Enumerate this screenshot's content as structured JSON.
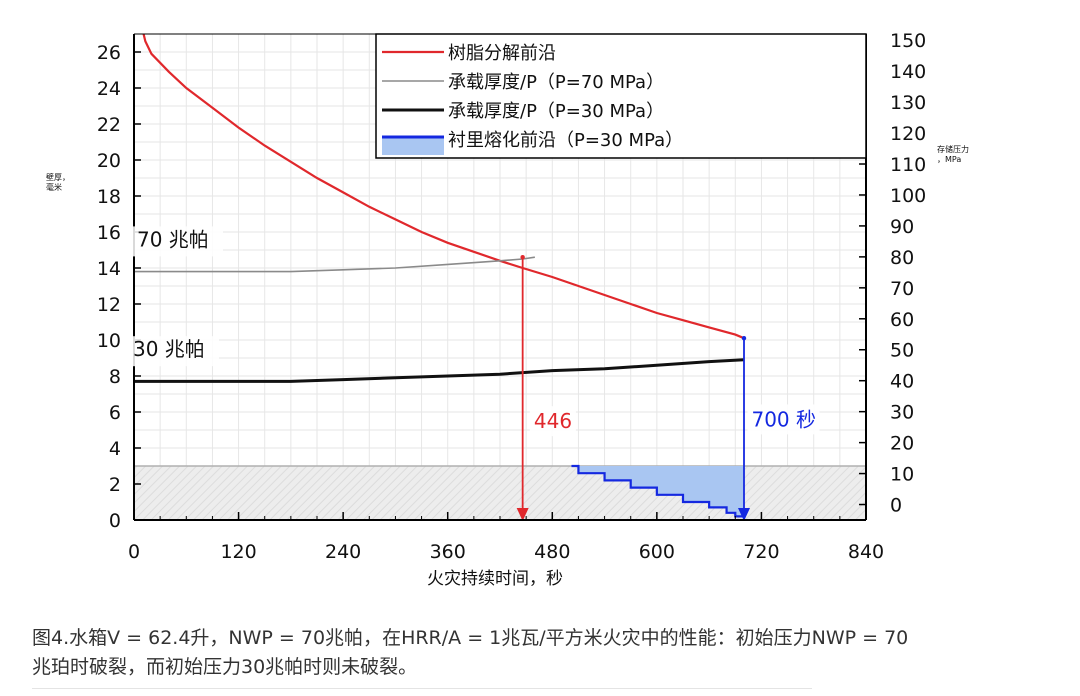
{
  "chart_data": {
    "type": "line",
    "x": [
      0,
      30,
      60,
      90,
      120,
      150,
      180,
      210,
      240,
      270,
      300,
      330,
      360,
      390,
      420,
      446,
      480,
      510,
      540,
      570,
      600,
      630,
      660,
      690,
      700
    ],
    "xlabel": "火灾持续时间，秒",
    "ylabel": "壁厚，毫米",
    "y2label": "存储压力，MPa",
    "xlim": [
      0,
      840
    ],
    "ylim": [
      0,
      27
    ],
    "y2lim": [
      -5,
      152
    ],
    "x_ticks": [
      0,
      120,
      240,
      360,
      480,
      600,
      720,
      840
    ],
    "y_ticks": [
      0,
      2,
      4,
      6,
      8,
      10,
      12,
      14,
      16,
      18,
      20,
      22,
      24,
      26
    ],
    "y2_ticks": [
      0,
      10,
      20,
      30,
      40,
      50,
      60,
      70,
      80,
      90,
      100,
      110,
      120,
      130,
      140,
      150
    ],
    "grid": true,
    "legend_position": "top-right",
    "series": [
      {
        "name": "树脂分解前沿",
        "color": "#e0282c",
        "axis": "left",
        "x": [
          11,
          13,
          20,
          40,
          60,
          90,
          120,
          150,
          180,
          210,
          240,
          270,
          300,
          330,
          360,
          390,
          420,
          446,
          480,
          510,
          540,
          570,
          600,
          630,
          660,
          690,
          700
        ],
        "y": [
          27.0,
          26.6,
          25.9,
          24.9,
          24.0,
          22.9,
          21.8,
          20.8,
          19.9,
          19.0,
          18.2,
          17.4,
          16.7,
          16.0,
          15.4,
          14.9,
          14.4,
          14.0,
          13.5,
          13.0,
          12.5,
          12.0,
          11.5,
          11.1,
          10.7,
          10.3,
          10.1
        ]
      },
      {
        "name": "承载厚度/P（P=70 MPa）",
        "color": "#8a8a8a",
        "axis": "left",
        "x": [
          0,
          60,
          120,
          180,
          240,
          300,
          360,
          420,
          446,
          460
        ],
        "y": [
          13.8,
          13.8,
          13.8,
          13.8,
          13.9,
          14.0,
          14.2,
          14.4,
          14.5,
          14.6
        ]
      },
      {
        "name": "承载厚度/P（P=30 MPa）",
        "color": "#111111",
        "axis": "left",
        "x": [
          0,
          60,
          120,
          180,
          240,
          300,
          360,
          420,
          480,
          540,
          600,
          660,
          700
        ],
        "y": [
          7.7,
          7.7,
          7.7,
          7.7,
          7.8,
          7.9,
          8.0,
          8.1,
          8.3,
          8.4,
          8.6,
          8.8,
          8.9
        ]
      },
      {
        "name": "衬里熔化前沿（P=30 MPa）",
        "color": "#1428e0",
        "fill": "#a9c6f2",
        "axis": "left",
        "x": [
          502,
          510,
          510,
          540,
          540,
          570,
          570,
          600,
          600,
          630,
          630,
          660,
          660,
          680,
          680,
          690,
          690,
          700
        ],
        "y": [
          3.0,
          3.0,
          2.6,
          2.6,
          2.2,
          2.2,
          1.8,
          1.8,
          1.4,
          1.4,
          1.0,
          1.0,
          0.7,
          0.7,
          0.4,
          0.4,
          0.2,
          0.2
        ]
      }
    ],
    "annotations": [
      {
        "text": "70 兆帕",
        "x": 0,
        "y": 15.2,
        "color": "#111111"
      },
      {
        "text": "30 兆帕",
        "x": 0,
        "y": 9.1,
        "color": "#111111"
      },
      {
        "text": "446",
        "x": 452,
        "y": 5.1,
        "color": "#e0282c"
      },
      {
        "text": "700 秒",
        "x": 704,
        "y": 5.2,
        "color": "#1428e0"
      }
    ],
    "markers": [
      {
        "x": 446,
        "y_from": 14.6,
        "color": "#e0282c"
      },
      {
        "x": 700,
        "y_from": 10.1,
        "color": "#1428e0"
      }
    ],
    "shaded_region": {
      "y_from": 0,
      "y_to": 3,
      "color": "#ececec"
    }
  },
  "caption": {
    "line1": "图4.水箱V = 62.4升，NWP = 70兆帕，在HRR/A = 1兆瓦/平方米火灾中的性能：初始压力NWP = 70",
    "line2": "兆珀时破裂，而初始压力30兆帕时则未破裂。"
  }
}
